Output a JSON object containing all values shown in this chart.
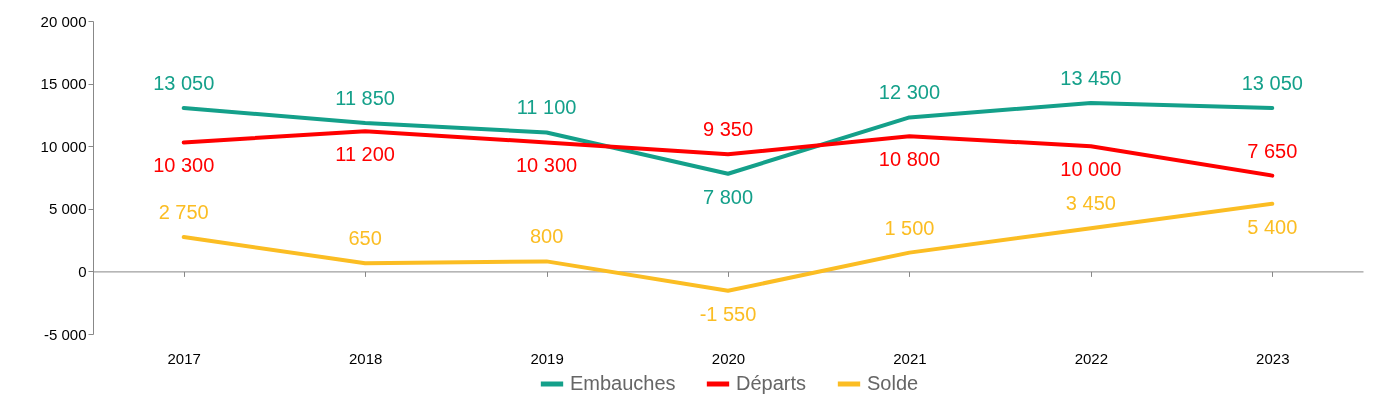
{
  "chart_data": {
    "type": "line",
    "categories": [
      "2017",
      "2018",
      "2019",
      "2020",
      "2021",
      "2022",
      "2023"
    ],
    "series": [
      {
        "name": "Embauches",
        "color": "#14a08a",
        "values": [
          13050,
          11850,
          11100,
          7800,
          12300,
          13450,
          13050
        ]
      },
      {
        "name": "Départs",
        "color": "#ff0000",
        "values": [
          10300,
          11200,
          10300,
          9350,
          10800,
          10000,
          7650
        ]
      },
      {
        "name": "Solde",
        "color": "#fbbd23",
        "values": [
          2750,
          650,
          800,
          -1550,
          1500,
          3450,
          5400
        ]
      }
    ],
    "ylim": [
      -5000,
      20000
    ],
    "yticks": [
      {
        "value": -5000,
        "label": "-5 000"
      },
      {
        "value": 0,
        "label": "0"
      },
      {
        "value": 5000,
        "label": "5 000"
      },
      {
        "value": 10000,
        "label": "10 000"
      },
      {
        "value": 15000,
        "label": "15 000"
      },
      {
        "value": 20000,
        "label": "20 000"
      }
    ],
    "legend": "bottom",
    "data_labels": true
  }
}
